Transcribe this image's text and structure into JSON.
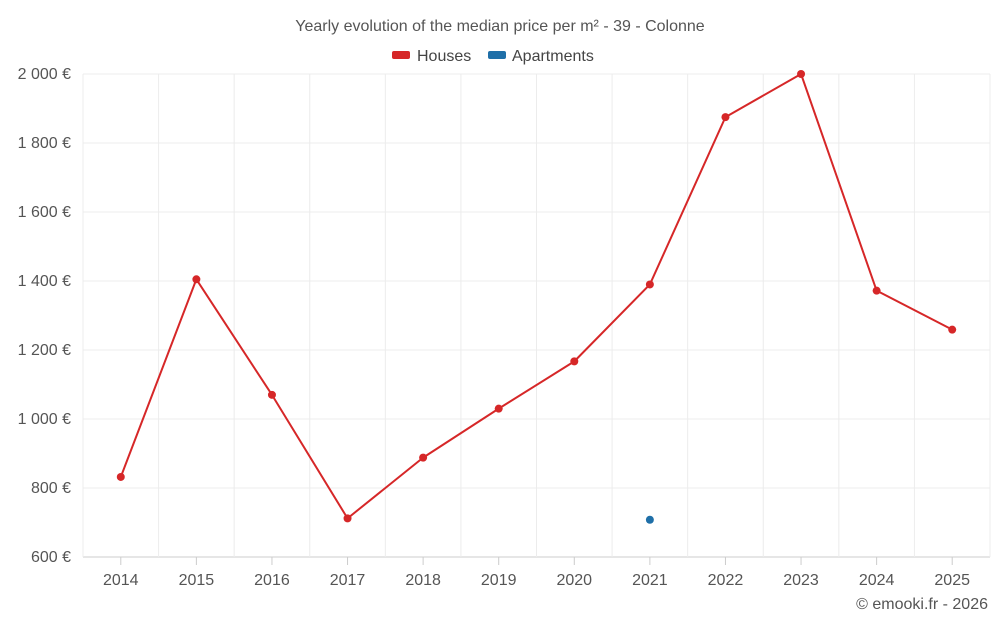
{
  "chart_data": {
    "type": "line",
    "title": "Yearly evolution of the median price per m² - 39 - Colonne",
    "categories": [
      "2014",
      "2015",
      "2016",
      "2017",
      "2018",
      "2019",
      "2020",
      "2021",
      "2022",
      "2023",
      "2024",
      "2025"
    ],
    "series": [
      {
        "name": "Houses",
        "color": "#d62728",
        "values": [
          832,
          1405,
          1070,
          712,
          888,
          1030,
          1167,
          1390,
          1875,
          2000,
          1372,
          1259
        ]
      },
      {
        "name": "Apartments",
        "color": "#1f6fa8",
        "values": [
          null,
          null,
          null,
          null,
          null,
          null,
          null,
          708,
          null,
          null,
          null,
          null
        ]
      }
    ],
    "ylim": [
      600,
      2000
    ],
    "yticks": [
      600,
      800,
      1000,
      1200,
      1400,
      1600,
      1800,
      2000
    ],
    "ytick_labels": [
      "600 €",
      "800 €",
      "1 000 €",
      "1 200 €",
      "1 400 €",
      "1 600 €",
      "1 800 €",
      "2 000 €"
    ],
    "grid": true,
    "legend": "top-center"
  },
  "credit": "© emooki.fr - 2026"
}
